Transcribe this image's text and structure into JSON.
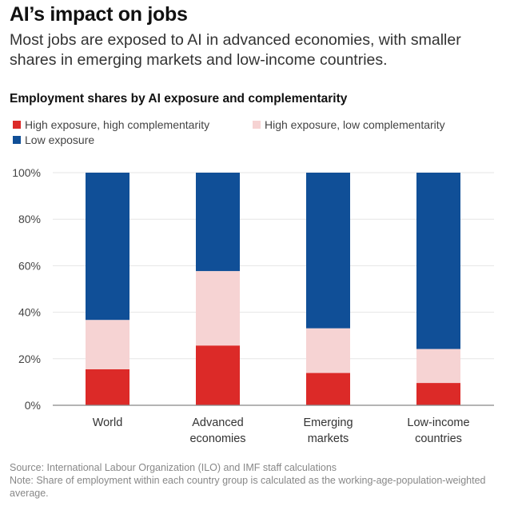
{
  "header": {
    "title": "AI’s impact on jobs",
    "subtitle": "Most jobs are exposed to AI in advanced economies, with smaller shares in emerging markets and low-income countries."
  },
  "chart_data": {
    "type": "bar",
    "stacked": true,
    "title": "Employment shares by AI exposure and complementarity",
    "categories": [
      "World",
      "Advanced economies",
      "Emerging markets",
      "Low-income countries"
    ],
    "category_lines": [
      [
        "World"
      ],
      [
        "Advanced",
        "economies"
      ],
      [
        "Emerging",
        "markets"
      ],
      [
        "Low-income",
        "countries"
      ]
    ],
    "series": [
      {
        "name": "High exposure, high complementarity",
        "color": "#dc2a28",
        "values": [
          15.5,
          25.7,
          13.9,
          9.6
        ]
      },
      {
        "name": "High exposure, low complementarity",
        "color": "#f6d3d3",
        "values": [
          21.2,
          32.0,
          19.2,
          14.6
        ]
      },
      {
        "name": "Low exposure",
        "color": "#104f97",
        "values": [
          63.3,
          42.3,
          66.9,
          75.8
        ]
      }
    ],
    "ylim": [
      0,
      100
    ],
    "yticks": [
      0,
      20,
      40,
      60,
      80,
      100
    ],
    "ytick_labels": [
      "0%",
      "20%",
      "40%",
      "60%",
      "80%",
      "100%"
    ],
    "xlabel": "",
    "ylabel": "",
    "grid": true,
    "legend_position": "top-left"
  },
  "legend": {
    "items": [
      {
        "label": "High exposure, high complementarity",
        "color": "#dc2a28"
      },
      {
        "label": "High exposure, low complementarity",
        "color": "#f6d3d3"
      },
      {
        "label": "Low exposure",
        "color": "#104f97"
      }
    ]
  },
  "footer": {
    "source": "Source: International Labour Organization (ILO) and IMF staff calculations",
    "note": "Note: Share of employment within each country group is calculated as the working-age-population-weighted average."
  }
}
